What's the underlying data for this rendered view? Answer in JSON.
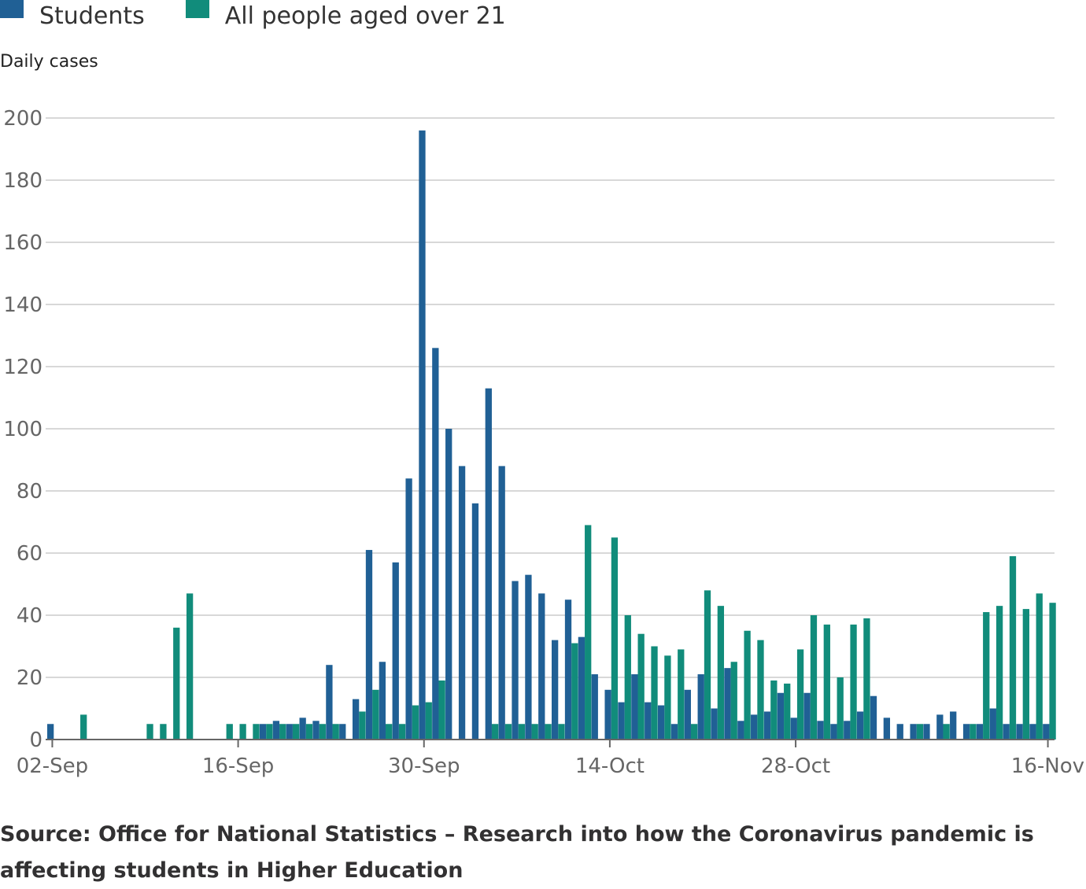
{
  "colors": {
    "students": "#206095",
    "over21": "#118c7b",
    "grid": "#cccccc",
    "axis": "#666666",
    "tick_text": "#666666"
  },
  "chart_data": {
    "type": "bar",
    "title": "",
    "ylabel": "Daily cases",
    "xlabel": "",
    "ylim": [
      0,
      200
    ],
    "yticks": [
      0,
      20,
      40,
      60,
      80,
      100,
      120,
      140,
      160,
      180,
      200
    ],
    "x_tick_labels": [
      {
        "day": 0,
        "label": "02-Sep"
      },
      {
        "day": 14,
        "label": "16-Sep"
      },
      {
        "day": 28,
        "label": "30-Sep"
      },
      {
        "day": 42,
        "label": "14-Oct"
      },
      {
        "day": 56,
        "label": "28-Oct"
      },
      {
        "day": 75,
        "label": "16-Nov"
      }
    ],
    "days": 76,
    "series": [
      {
        "name": "Students",
        "values": [
          5,
          0,
          0,
          0,
          0,
          0,
          0,
          0,
          0,
          0,
          0,
          0,
          0,
          0,
          0,
          0,
          5,
          6,
          5,
          7,
          6,
          24,
          5,
          13,
          61,
          25,
          57,
          84,
          196,
          126,
          100,
          88,
          76,
          113,
          88,
          51,
          53,
          47,
          32,
          45,
          33,
          21,
          16,
          12,
          21,
          12,
          11,
          5,
          16,
          21,
          10,
          23,
          6,
          8,
          9,
          15,
          7,
          15,
          6,
          5,
          6,
          9,
          14,
          7,
          5,
          5,
          5,
          8,
          9,
          5,
          5,
          10,
          5,
          5,
          5,
          5
        ]
      },
      {
        "name": "All people aged over 21",
        "values": [
          0,
          0,
          8,
          0,
          0,
          0,
          0,
          5,
          5,
          36,
          47,
          0,
          0,
          5,
          5,
          5,
          5,
          5,
          5,
          5,
          5,
          5,
          0,
          9,
          16,
          5,
          5,
          11,
          12,
          19,
          0,
          0,
          0,
          5,
          5,
          5,
          5,
          5,
          5,
          31,
          69,
          0,
          65,
          40,
          34,
          30,
          27,
          29,
          5,
          48,
          43,
          25,
          35,
          32,
          19,
          18,
          29,
          40,
          37,
          20,
          37,
          39,
          0,
          0,
          0,
          5,
          0,
          5,
          0,
          5,
          41,
          43,
          59,
          42,
          47,
          44
        ]
      }
    ]
  },
  "legend": {
    "students_label": "Students",
    "over21_label": "All people aged over 21"
  },
  "source_text": "Source: Office for National Statistics – Research into how the Coronavirus pandemic is affecting students in Higher Education"
}
